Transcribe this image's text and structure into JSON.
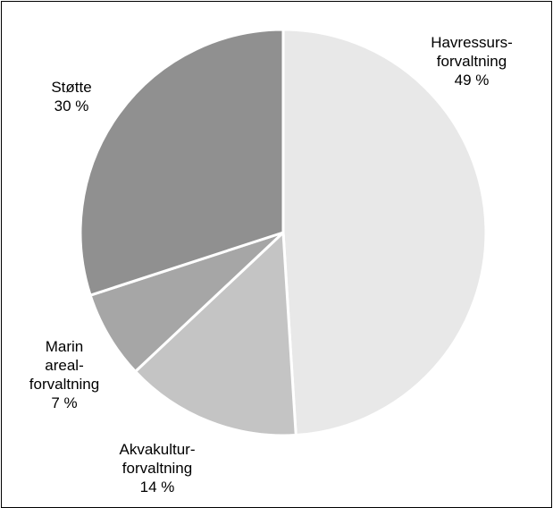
{
  "chart_data": {
    "type": "pie",
    "title": "",
    "start_angle_deg": 0,
    "direction": "clockwise",
    "slices": [
      {
        "lines": [
          "Havressurs-",
          "forvaltning"
        ],
        "pct_label": "49 %",
        "value": 49,
        "color": "#e8e8e8"
      },
      {
        "lines": [
          "Akvakultur-",
          "forvaltning"
        ],
        "pct_label": "14 %",
        "value": 14,
        "color": "#c4c4c4"
      },
      {
        "lines": [
          "Marin",
          "areal-",
          "forvaltning"
        ],
        "pct_label": "7 %",
        "value": 7,
        "color": "#a6a6a6"
      },
      {
        "lines": [
          "Støtte"
        ],
        "pct_label": "30 %",
        "value": 30,
        "color": "#909090"
      }
    ],
    "slice_border_color": "#ffffff",
    "legend": "none"
  }
}
